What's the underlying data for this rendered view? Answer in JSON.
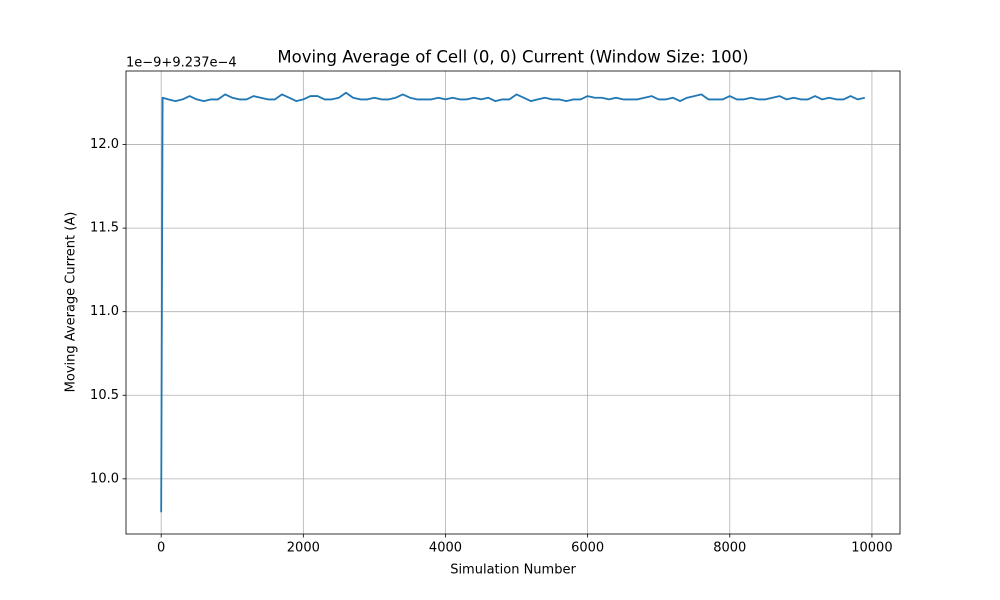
{
  "chart_data": {
    "type": "line",
    "title": "Moving Average of Cell (0, 0) Current (Window Size: 100)",
    "x_label": "Simulation Number",
    "y_label": "Moving Average Current (A)",
    "y_offset_label": "1e−9+9.237e−4",
    "xlim": [
      -495,
      10395
    ],
    "xticks": [
      0,
      2000,
      4000,
      6000,
      8000,
      10000
    ],
    "ylim": [
      9.67,
      12.44
    ],
    "yticks": [
      {
        "value": 10,
        "label": "10.0"
      },
      10.5,
      {
        "value": 11,
        "label": "11.0"
      },
      11.5,
      {
        "value": 12,
        "label": "12.0"
      }
    ],
    "grid": true,
    "x": [
      0,
      20,
      100,
      200,
      300,
      400,
      500,
      600,
      700,
      800,
      900,
      1000,
      1100,
      1200,
      1300,
      1400,
      1500,
      1600,
      1700,
      1800,
      1900,
      2000,
      2100,
      2200,
      2300,
      2400,
      2500,
      2600,
      2700,
      2800,
      2900,
      3000,
      3100,
      3200,
      3300,
      3400,
      3500,
      3600,
      3700,
      3800,
      3900,
      4000,
      4100,
      4200,
      4300,
      4400,
      4500,
      4600,
      4700,
      4800,
      4900,
      5000,
      5100,
      5200,
      5300,
      5400,
      5500,
      5600,
      5700,
      5800,
      5900,
      6000,
      6100,
      6200,
      6300,
      6400,
      6500,
      6600,
      6700,
      6800,
      6900,
      7000,
      7100,
      7200,
      7300,
      7400,
      7500,
      7600,
      7700,
      7800,
      7900,
      8000,
      8100,
      8200,
      8300,
      8400,
      8500,
      8600,
      8700,
      8800,
      8900,
      9000,
      9100,
      9200,
      9300,
      9400,
      9500,
      9600,
      9700,
      9800,
      9900
    ],
    "series": [
      {
        "color": "#1f77b4",
        "values": [
          9.8,
          12.28,
          12.27,
          12.26,
          12.27,
          12.29,
          12.27,
          12.26,
          12.27,
          12.27,
          12.3,
          12.28,
          12.27,
          12.27,
          12.29,
          12.28,
          12.27,
          12.27,
          12.3,
          12.28,
          12.26,
          12.27,
          12.29,
          12.29,
          12.27,
          12.27,
          12.28,
          12.31,
          12.28,
          12.27,
          12.27,
          12.28,
          12.27,
          12.27,
          12.28,
          12.3,
          12.28,
          12.27,
          12.27,
          12.27,
          12.28,
          12.27,
          12.28,
          12.27,
          12.27,
          12.28,
          12.27,
          12.28,
          12.26,
          12.27,
          12.27,
          12.3,
          12.28,
          12.26,
          12.27,
          12.28,
          12.27,
          12.27,
          12.26,
          12.27,
          12.27,
          12.29,
          12.28,
          12.28,
          12.27,
          12.28,
          12.27,
          12.27,
          12.27,
          12.28,
          12.29,
          12.27,
          12.27,
          12.28,
          12.26,
          12.28,
          12.29,
          12.3,
          12.27,
          12.27,
          12.27,
          12.29,
          12.27,
          12.27,
          12.28,
          12.27,
          12.27,
          12.28,
          12.29,
          12.27,
          12.28,
          12.27,
          12.27,
          12.29,
          12.27,
          12.28,
          12.27,
          12.27,
          12.29,
          12.27,
          12.28
        ]
      }
    ]
  }
}
